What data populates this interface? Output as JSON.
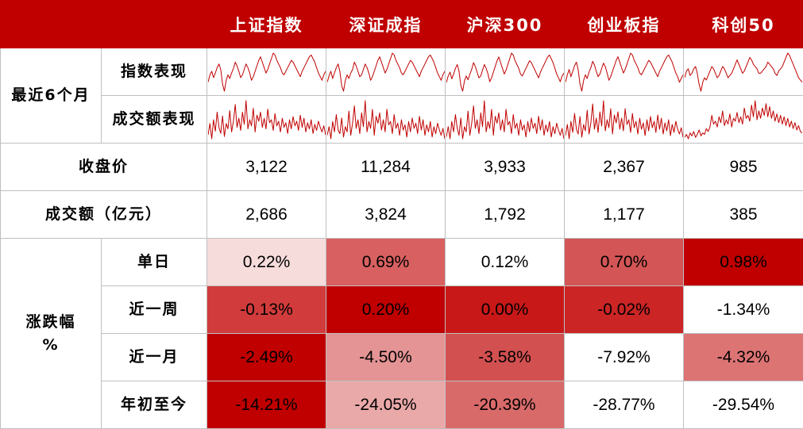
{
  "chart_data": {
    "type": "table",
    "columns": [
      "上证指数",
      "深证成指",
      "沪深300",
      "创业板指",
      "科创50"
    ],
    "section_6m": {
      "label": "最近6个月",
      "index_row_label": "指数表现",
      "volume_row_label": "成交额表现",
      "index_series": [
        [
          50,
          58,
          62,
          55,
          60,
          66,
          70,
          64,
          48,
          40,
          52,
          58,
          54,
          60,
          65,
          72,
          68,
          62,
          55,
          58,
          64,
          70,
          66,
          60,
          52,
          56,
          62,
          68,
          74,
          78,
          72,
          66,
          60,
          64,
          70,
          76,
          82,
          80,
          74,
          70,
          66,
          60,
          58,
          62,
          66,
          70,
          74,
          72,
          68,
          64,
          60,
          56,
          62,
          66,
          70,
          74,
          78,
          80,
          76,
          72,
          66,
          60,
          56,
          52,
          58,
          62
        ],
        [
          48,
          55,
          60,
          52,
          58,
          64,
          68,
          60,
          44,
          38,
          50,
          56,
          52,
          58,
          62,
          70,
          66,
          60,
          54,
          56,
          62,
          68,
          64,
          58,
          50,
          54,
          60,
          66,
          72,
          76,
          70,
          64,
          58,
          62,
          68,
          74,
          80,
          78,
          72,
          68,
          64,
          58,
          56,
          60,
          64,
          68,
          72,
          70,
          66,
          62,
          58,
          54,
          60,
          64,
          68,
          72,
          76,
          78,
          74,
          70,
          64,
          58,
          54,
          50,
          56,
          60
        ],
        [
          50,
          57,
          61,
          54,
          59,
          65,
          69,
          62,
          47,
          41,
          52,
          57,
          53,
          59,
          64,
          71,
          67,
          61,
          55,
          57,
          63,
          69,
          65,
          59,
          51,
          55,
          61,
          67,
          73,
          77,
          71,
          65,
          59,
          63,
          69,
          75,
          81,
          79,
          73,
          69,
          65,
          59,
          57,
          61,
          65,
          69,
          73,
          71,
          67,
          63,
          59,
          55,
          61,
          65,
          69,
          73,
          77,
          79,
          75,
          71,
          65,
          59,
          55,
          51,
          57,
          60
        ],
        [
          46,
          54,
          60,
          52,
          58,
          64,
          68,
          60,
          44,
          36,
          48,
          54,
          50,
          57,
          62,
          69,
          65,
          58,
          52,
          55,
          61,
          67,
          63,
          56,
          48,
          52,
          58,
          64,
          70,
          74,
          68,
          62,
          56,
          60,
          66,
          72,
          78,
          76,
          70,
          66,
          62,
          56,
          54,
          58,
          62,
          66,
          70,
          68,
          64,
          60,
          56,
          52,
          58,
          62,
          66,
          70,
          74,
          76,
          72,
          68,
          62,
          56,
          52,
          46,
          50,
          54
        ],
        [
          58,
          64,
          66,
          60,
          62,
          66,
          68,
          62,
          52,
          46,
          54,
          58,
          56,
          60,
          64,
          68,
          66,
          62,
          58,
          60,
          64,
          68,
          66,
          62,
          58,
          60,
          62,
          66,
          70,
          74,
          70,
          66,
          62,
          64,
          68,
          72,
          76,
          74,
          70,
          68,
          66,
          62,
          62,
          64,
          66,
          68,
          72,
          70,
          68,
          66,
          62,
          60,
          64,
          66,
          68,
          72,
          76,
          80,
          78,
          74,
          70,
          66,
          62,
          58,
          56,
          54
        ]
      ],
      "volume_series": [
        [
          40,
          55,
          35,
          60,
          45,
          70,
          50,
          42,
          65,
          38,
          55,
          48,
          72,
          44,
          58,
          80,
          50,
          62,
          46,
          70,
          54,
          85,
          48,
          60,
          52,
          75,
          44,
          66,
          58,
          70,
          50,
          62,
          48,
          74,
          56,
          60,
          46,
          68,
          52,
          58,
          44,
          62,
          50,
          56,
          42,
          60,
          48,
          64,
          52,
          58,
          46,
          66,
          50,
          62,
          44,
          56,
          48,
          60,
          42,
          54,
          46,
          58,
          50,
          44,
          52,
          40
        ],
        [
          42,
          52,
          38,
          58,
          46,
          66,
          48,
          44,
          62,
          40,
          52,
          46,
          70,
          42,
          56,
          76,
          50,
          60,
          44,
          68,
          52,
          82,
          46,
          58,
          50,
          72,
          42,
          64,
          56,
          68,
          48,
          60,
          46,
          72,
          54,
          58,
          44,
          66,
          50,
          56,
          42,
          60,
          48,
          54,
          40,
          58,
          46,
          62,
          50,
          56,
          44,
          64,
          48,
          60,
          42,
          54,
          46,
          58,
          40,
          52,
          44,
          56,
          48,
          42,
          50,
          38
        ],
        [
          38,
          50,
          36,
          56,
          44,
          64,
          48,
          40,
          60,
          36,
          50,
          44,
          68,
          40,
          54,
          74,
          48,
          58,
          42,
          66,
          50,
          80,
          44,
          56,
          48,
          70,
          40,
          62,
          54,
          66,
          46,
          58,
          44,
          70,
          52,
          56,
          42,
          64,
          48,
          54,
          40,
          58,
          46,
          52,
          38,
          56,
          44,
          60,
          48,
          54,
          42,
          62,
          46,
          58,
          40,
          52,
          44,
          56,
          38,
          50,
          42,
          54,
          46,
          40,
          48,
          36
        ],
        [
          44,
          58,
          40,
          62,
          48,
          72,
          52,
          46,
          68,
          42,
          58,
          50,
          76,
          46,
          60,
          84,
          52,
          66,
          48,
          74,
          56,
          88,
          50,
          64,
          54,
          78,
          46,
          70,
          60,
          74,
          52,
          66,
          50,
          78,
          58,
          64,
          48,
          72,
          54,
          62,
          46,
          66,
          52,
          60,
          44,
          64,
          50,
          68,
          54,
          62,
          48,
          70,
          52,
          66,
          46,
          60,
          50,
          64,
          44,
          58,
          48,
          62,
          52,
          46,
          54,
          42
        ],
        [
          30,
          34,
          28,
          36,
          32,
          38,
          30,
          34,
          40,
          32,
          36,
          34,
          42,
          38,
          44,
          60,
          48,
          52,
          44,
          58,
          50,
          66,
          46,
          54,
          48,
          62,
          44,
          56,
          52,
          64,
          50,
          58,
          48,
          70,
          56,
          60,
          52,
          74,
          58,
          80,
          54,
          66,
          56,
          70,
          60,
          76,
          58,
          72,
          56,
          66,
          52,
          62,
          50,
          60,
          48,
          58,
          46,
          56,
          44,
          52,
          42,
          50,
          40,
          46,
          38,
          36
        ]
      ]
    },
    "close": {
      "label": "收盘价",
      "values": [
        "3,122",
        "11,284",
        "3,933",
        "2,367",
        "985"
      ]
    },
    "turnover": {
      "label": "成交额（亿元）",
      "values": [
        "2,686",
        "3,824",
        "1,792",
        "1,177",
        "385"
      ]
    },
    "change": {
      "label_line1": "涨跌幅",
      "label_line2": "%",
      "rows": [
        {
          "label": "单日",
          "values": [
            "0.22%",
            "0.69%",
            "0.12%",
            "0.70%",
            "0.98%"
          ],
          "colors": [
            "#f7dcdc",
            "#d86060",
            "#ffffff",
            "#d35555",
            "#c00000"
          ]
        },
        {
          "label": "近一周",
          "values": [
            "-0.13%",
            "0.20%",
            "0.00%",
            "-0.02%",
            "-1.34%"
          ],
          "colors": [
            "#d13b3b",
            "#c00000",
            "#c91818",
            "#cb2525",
            "#ffffff"
          ]
        },
        {
          "label": "近一月",
          "values": [
            "-2.49%",
            "-4.50%",
            "-3.58%",
            "-7.92%",
            "-4.32%"
          ],
          "colors": [
            "#c00000",
            "#e49494",
            "#d35050",
            "#ffffff",
            "#dd7474"
          ]
        },
        {
          "label": "年初至今",
          "values": [
            "-14.21%",
            "-24.05%",
            "-20.39%",
            "-28.77%",
            "-29.54%"
          ],
          "colors": [
            "#c00000",
            "#eaa9a9",
            "#d96a6a",
            "#ffffff",
            "#ffffff"
          ]
        }
      ]
    }
  }
}
